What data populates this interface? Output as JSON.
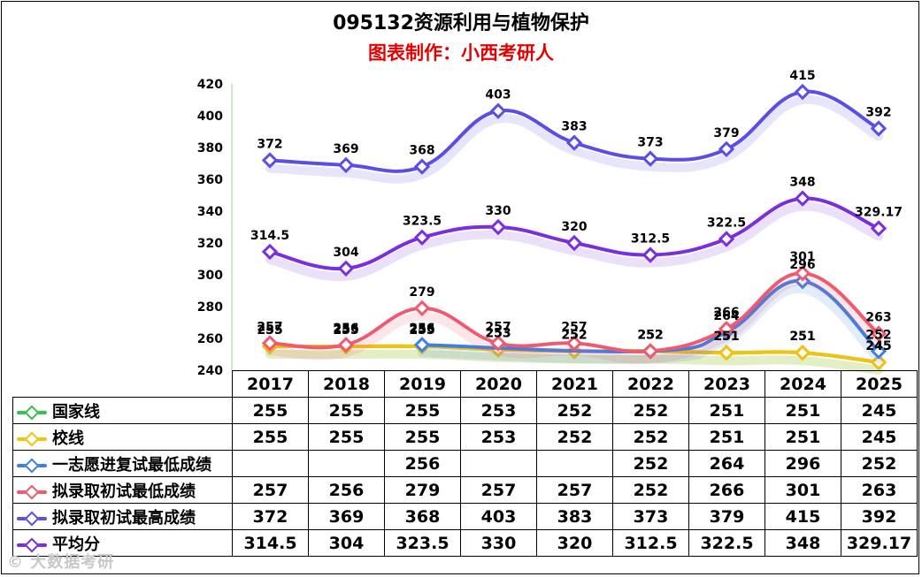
{
  "chart_data": {
    "type": "line",
    "title": "095132资源利用与植物保护",
    "subtitle": "图表制作：小西考研人",
    "categories": [
      "2017",
      "2018",
      "2019",
      "2020",
      "2021",
      "2022",
      "2023",
      "2024",
      "2025"
    ],
    "ylim": [
      240,
      420
    ],
    "yticks": [
      240,
      260,
      280,
      300,
      320,
      340,
      360,
      380,
      400,
      420
    ],
    "legend_placement": "table-left",
    "series": [
      {
        "name": "国家线",
        "color": "#33c24d",
        "values": [
          255,
          255,
          255,
          253,
          252,
          252,
          251,
          251,
          245
        ],
        "labels": [
          "255",
          "255",
          "255",
          "253",
          "252",
          "252",
          "251",
          "251",
          "245"
        ]
      },
      {
        "name": "校线",
        "color": "#f2c20c",
        "values": [
          255,
          255,
          255,
          253,
          252,
          252,
          251,
          251,
          245
        ],
        "labels": [
          "255",
          "255",
          "255",
          "253",
          "252",
          "252",
          "251",
          "251",
          "245"
        ]
      },
      {
        "name": "一志愿进复试最低成绩",
        "color": "#3d7fe6",
        "values": [
          null,
          null,
          256,
          null,
          null,
          252,
          264,
          296,
          252
        ],
        "labels": [
          "",
          "",
          "256",
          "",
          "",
          "252",
          "264",
          "296",
          "252"
        ]
      },
      {
        "name": "拟录取初试最低成绩",
        "color": "#f05a6e",
        "values": [
          257,
          256,
          279,
          257,
          257,
          252,
          266,
          301,
          263
        ],
        "labels": [
          "257",
          "256",
          "279",
          "257",
          "257",
          "252",
          "266",
          "301",
          "263"
        ]
      },
      {
        "name": "拟录取初试最高成绩",
        "color": "#5b4ee6",
        "values": [
          372,
          369,
          368,
          403,
          383,
          373,
          379,
          415,
          392
        ],
        "labels": [
          "372",
          "369",
          "368",
          "403",
          "383",
          "373",
          "379",
          "415",
          "392"
        ]
      },
      {
        "name": "平均分",
        "color": "#7a2ee0",
        "values": [
          314.5,
          304,
          323.5,
          330,
          320,
          312.5,
          322.5,
          348,
          329.17
        ],
        "labels": [
          "314.5",
          "304",
          "323.5",
          "330",
          "320",
          "312.5",
          "322.5",
          "348",
          "329.17"
        ]
      }
    ]
  },
  "watermark": "© 大数据考研"
}
